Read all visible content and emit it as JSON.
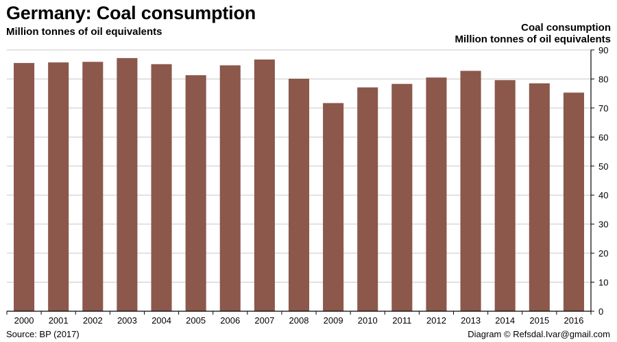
{
  "header": {
    "title": "Germany: Coal consumption",
    "subtitle": "Million tonnes of oil equivalents"
  },
  "axis_title": {
    "line1": "Coal consumption",
    "line2": "Million tonnes of oil equivalents"
  },
  "footer": {
    "source": "Source: BP (2017)",
    "credit": "Diagram © Refsdal.Ivar@gmail.com"
  },
  "colors": {
    "bar": "#8b584b",
    "grid": "#c8c8c8",
    "axis": "#000000"
  },
  "chart_data": {
    "type": "bar",
    "title": "Germany: Coal consumption",
    "subtitle": "Million tonnes of oil equivalents",
    "ylabel": "Coal consumption\nMillion tonnes of oil equivalents",
    "y_axis_side": "right",
    "ylim": [
      0,
      90
    ],
    "yticks": [
      0,
      10,
      20,
      30,
      40,
      50,
      60,
      70,
      80,
      90
    ],
    "grid": true,
    "categories": [
      "2000",
      "2001",
      "2002",
      "2003",
      "2004",
      "2005",
      "2006",
      "2007",
      "2008",
      "2009",
      "2010",
      "2011",
      "2012",
      "2013",
      "2014",
      "2015",
      "2016"
    ],
    "series": [
      {
        "values": [
          85.5,
          85.7,
          85.9,
          87.2,
          85.1,
          81.3,
          84.7,
          86.7,
          80.1,
          71.7,
          77.1,
          78.3,
          80.5,
          82.8,
          79.6,
          78.5,
          75.3
        ]
      }
    ]
  }
}
